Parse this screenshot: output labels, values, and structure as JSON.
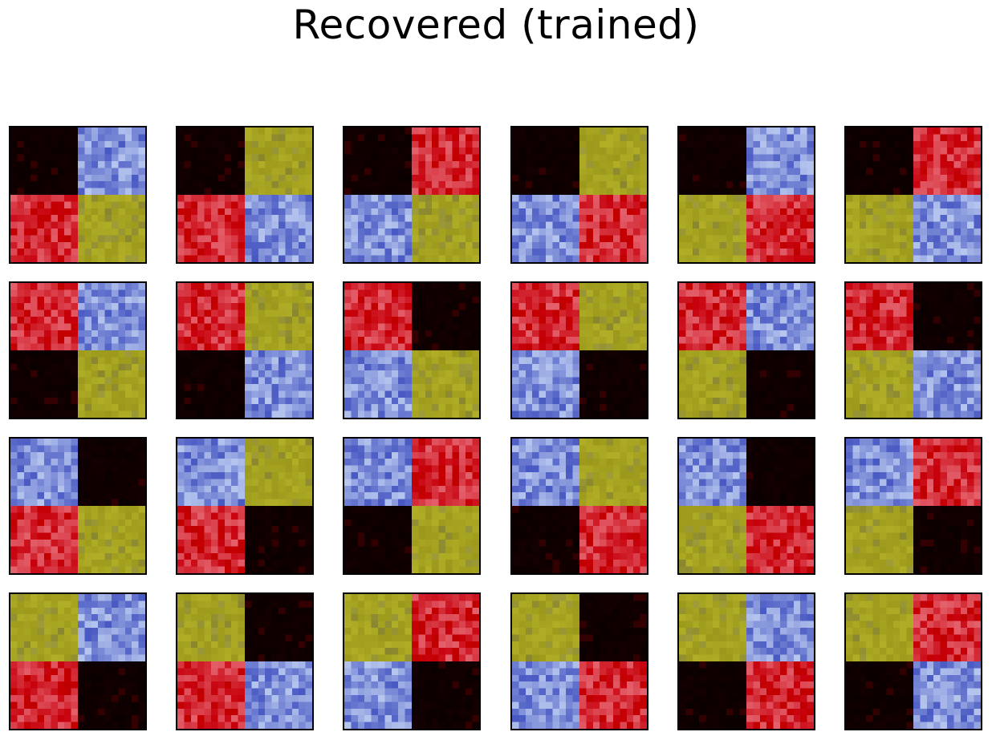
{
  "title": "Recovered (trained)",
  "palette": {
    "black": "#0a0000",
    "blue": "#6f7fd2",
    "red": "#d01f2a",
    "yellow": "#a6a321"
  },
  "rows": [
    [
      {
        "quadrants": [
          "black",
          "blue",
          "red",
          "yellow"
        ]
      },
      {
        "quadrants": [
          "black",
          "yellow",
          "red",
          "blue"
        ]
      },
      {
        "quadrants": [
          "black",
          "red",
          "blue",
          "yellow"
        ]
      },
      {
        "quadrants": [
          "black",
          "yellow",
          "blue",
          "red"
        ]
      },
      {
        "quadrants": [
          "black",
          "blue",
          "yellow",
          "red"
        ]
      },
      {
        "quadrants": [
          "black",
          "red",
          "yellow",
          "blue"
        ]
      }
    ],
    [
      {
        "quadrants": [
          "red",
          "blue",
          "black",
          "yellow"
        ]
      },
      {
        "quadrants": [
          "red",
          "yellow",
          "black",
          "blue"
        ]
      },
      {
        "quadrants": [
          "red",
          "black",
          "blue",
          "yellow"
        ]
      },
      {
        "quadrants": [
          "red",
          "yellow",
          "blue",
          "black"
        ]
      },
      {
        "quadrants": [
          "red",
          "blue",
          "yellow",
          "black"
        ]
      },
      {
        "quadrants": [
          "red",
          "black",
          "yellow",
          "blue"
        ]
      }
    ],
    [
      {
        "quadrants": [
          "blue",
          "black",
          "red",
          "yellow"
        ]
      },
      {
        "quadrants": [
          "blue",
          "yellow",
          "red",
          "black"
        ]
      },
      {
        "quadrants": [
          "blue",
          "red",
          "black",
          "yellow"
        ]
      },
      {
        "quadrants": [
          "blue",
          "yellow",
          "black",
          "red"
        ]
      },
      {
        "quadrants": [
          "blue",
          "black",
          "yellow",
          "red"
        ]
      },
      {
        "quadrants": [
          "blue",
          "red",
          "yellow",
          "black"
        ]
      }
    ],
    [
      {
        "quadrants": [
          "yellow",
          "blue",
          "red",
          "black"
        ]
      },
      {
        "quadrants": [
          "yellow",
          "black",
          "red",
          "blue"
        ]
      },
      {
        "quadrants": [
          "yellow",
          "red",
          "blue",
          "black"
        ]
      },
      {
        "quadrants": [
          "yellow",
          "black",
          "blue",
          "red"
        ]
      },
      {
        "quadrants": [
          "yellow",
          "blue",
          "black",
          "red"
        ]
      },
      {
        "quadrants": [
          "yellow",
          "red",
          "black",
          "blue"
        ]
      }
    ]
  ]
}
